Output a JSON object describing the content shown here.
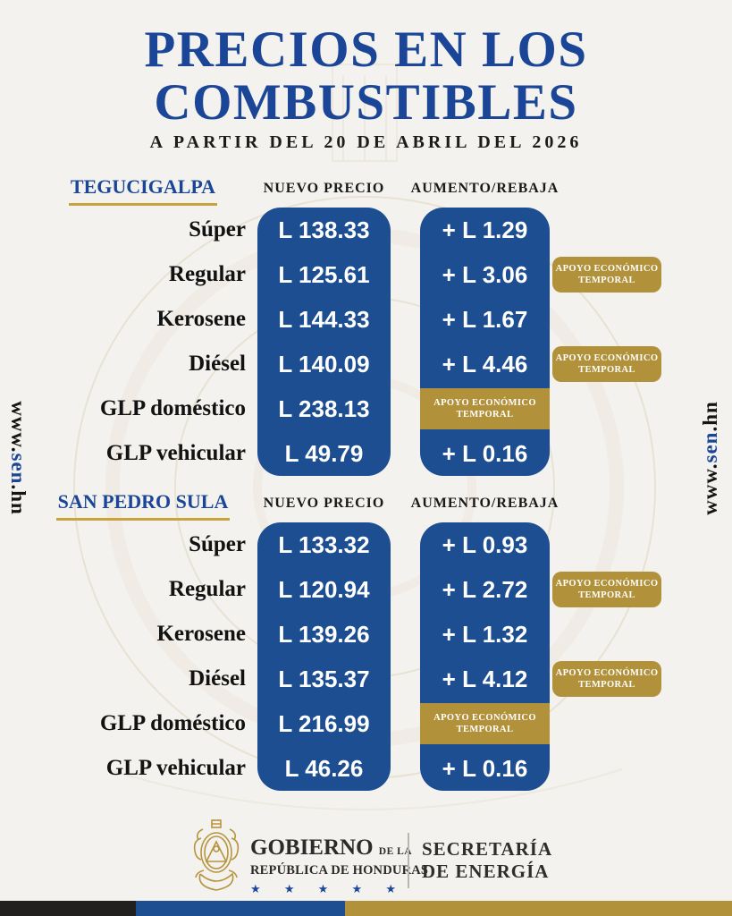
{
  "title": {
    "line1": "PRECIOS EN LOS",
    "line2": "COMBUSTIBLES"
  },
  "subtitle": "A PARTIR DEL 20 DE ABRIL DEL 2026",
  "website": {
    "prefix": "www.",
    "highlight": "sen",
    "suffix": ".hn"
  },
  "columns": {
    "new_price": "NUEVO PRECIO",
    "change": "AUMENTO/REBAJA"
  },
  "support_badge": {
    "line1": "APOYO ECONÓMICO",
    "line2": "TEMPORAL"
  },
  "sections": [
    {
      "city": "TEGUCIGALPA",
      "rows": [
        {
          "fuel": "Súper",
          "price": "L 138.33",
          "change": "+ L 1.29",
          "badge": false,
          "band": false
        },
        {
          "fuel": "Regular",
          "price": "L 125.61",
          "change": "+ L 3.06",
          "badge": true,
          "band": false
        },
        {
          "fuel": "Kerosene",
          "price": "L 144.33",
          "change": "+ L 1.67",
          "badge": false,
          "band": false
        },
        {
          "fuel": "Diésel",
          "price": "L 140.09",
          "change": "+ L 4.46",
          "badge": true,
          "band": false
        },
        {
          "fuel": "GLP doméstico",
          "price": "L 238.13",
          "change": "",
          "badge": false,
          "band": true
        },
        {
          "fuel": "GLP vehicular",
          "price": "L 49.79",
          "change": "+ L 0.16",
          "badge": false,
          "band": false
        }
      ]
    },
    {
      "city": "SAN PEDRO SULA",
      "rows": [
        {
          "fuel": "Súper",
          "price": "L 133.32",
          "change": "+ L 0.93",
          "badge": false,
          "band": false
        },
        {
          "fuel": "Regular",
          "price": "L 120.94",
          "change": "+ L 2.72",
          "badge": true,
          "band": false
        },
        {
          "fuel": "Kerosene",
          "price": "L 139.26",
          "change": "+ L 1.32",
          "badge": false,
          "band": false
        },
        {
          "fuel": "Diésel",
          "price": "L 135.37",
          "change": "+ L 4.12",
          "badge": true,
          "band": false
        },
        {
          "fuel": "GLP doméstico",
          "price": "L 216.99",
          "change": "",
          "badge": false,
          "band": true
        },
        {
          "fuel": "GLP vehicular",
          "price": "L 46.26",
          "change": "+ L 0.16",
          "badge": false,
          "band": false
        }
      ]
    }
  ],
  "footer": {
    "government": {
      "name": "GOBIERNO",
      "name_suffix": "DE LA",
      "line2": "REPÚBLICA DE HONDURAS",
      "stars": [
        "★",
        "★",
        "★",
        "★",
        "★"
      ]
    },
    "secretary": {
      "line1": "SECRETARÍA",
      "line2": "DE ENERGÍA"
    }
  },
  "colors": {
    "navy": "#1b4697",
    "pill_blue": "#1d4e92",
    "gold": "#b2913b",
    "underline_gold": "#c9a43d",
    "background": "#f4f2ee",
    "stripe_black": "#221f1f"
  }
}
